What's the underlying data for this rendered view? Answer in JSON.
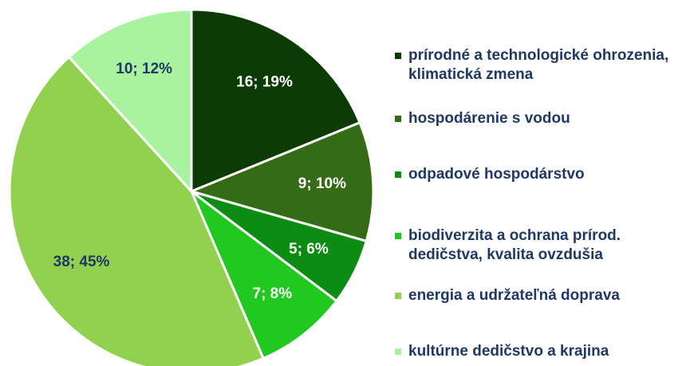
{
  "chart_data": {
    "type": "pie",
    "categories": [
      "prírodné a technologické ohrozenia, klimatická zmena",
      "hospodárenie s vodou",
      "odpadové hospodárstvo",
      "biodiverzita a ochrana prírod. dedičstva, kvalita ovzdušia",
      "energia a udržateľná doprava",
      "kultúrne dedičstvo a krajina"
    ],
    "values": [
      16,
      9,
      5,
      7,
      38,
      10
    ],
    "value_labels": [
      "16; 19%",
      "9; 10%",
      "5; 6%",
      "7; 8%",
      "38; 45%",
      "10; 12%"
    ],
    "colors": [
      "#0b3a03",
      "#336c14",
      "#0c8c12",
      "#20c820",
      "#92d050",
      "#a8f2a0"
    ],
    "legend": "right"
  }
}
